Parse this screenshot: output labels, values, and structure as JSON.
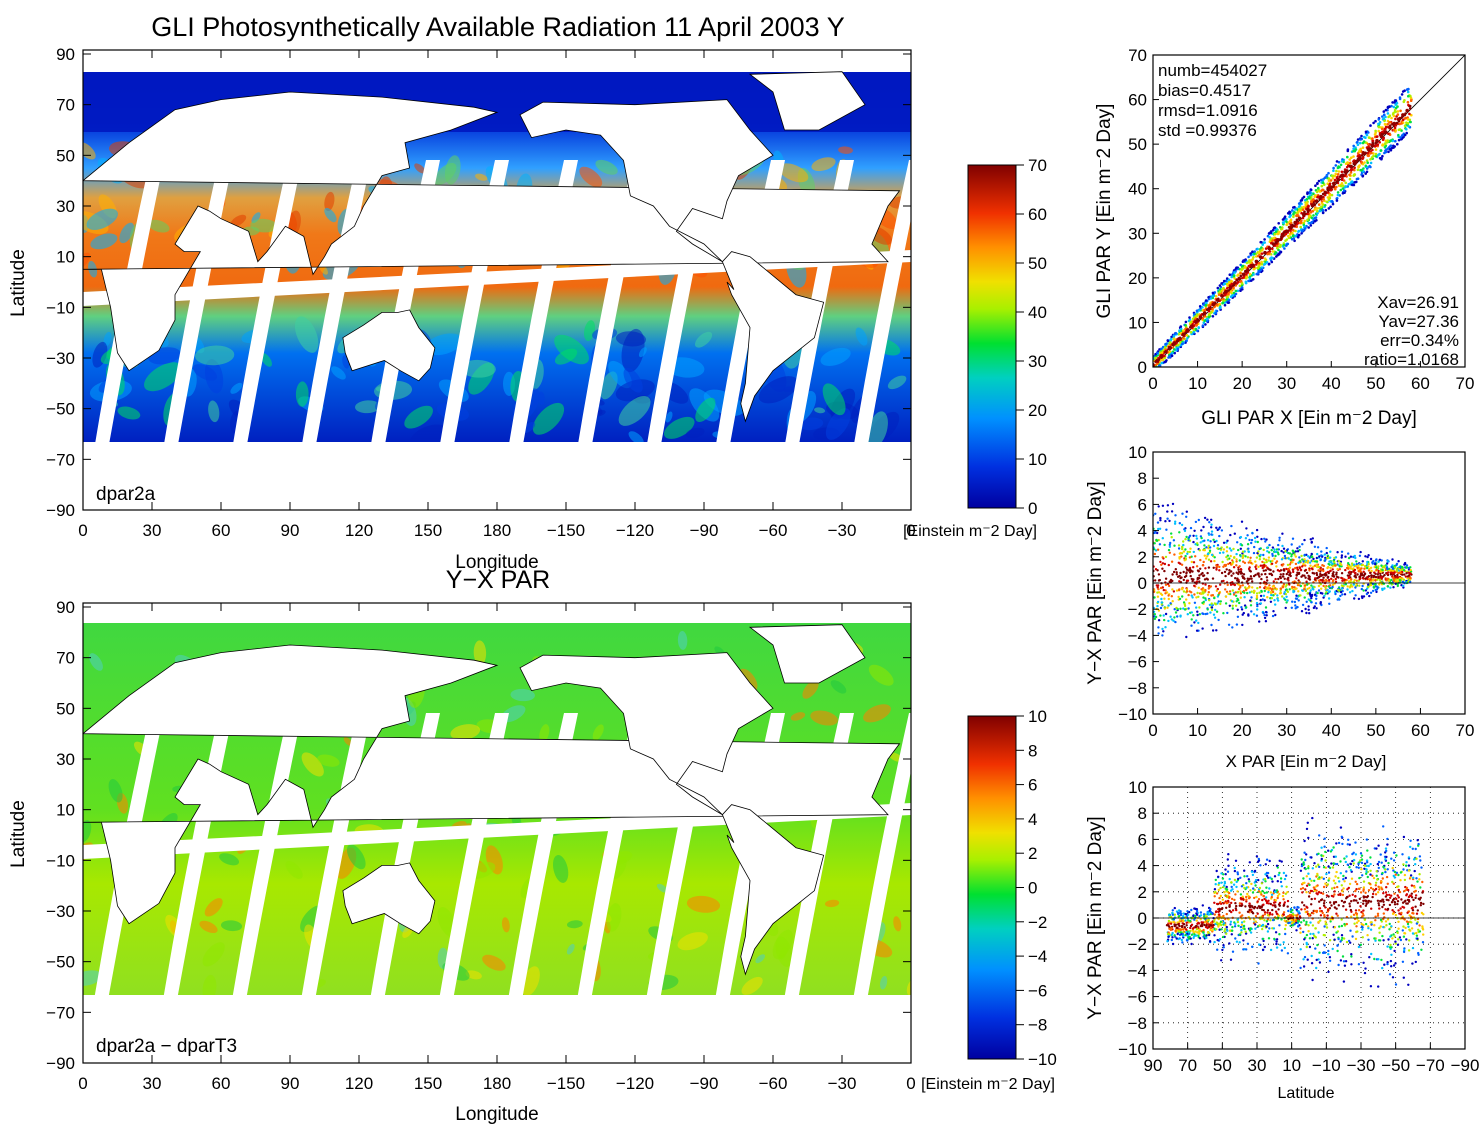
{
  "title": "GLI Photosynthetically Available Radiation 11 April 2003 Y",
  "map1": {
    "panel_label": "dpar2a",
    "xlabel": "Longitude",
    "ylabel": "Latitude",
    "x_ticks": [
      "0",
      "30",
      "60",
      "90",
      "120",
      "150",
      "180",
      "−150",
      "−120",
      "−90",
      "−60",
      "−30",
      "0"
    ],
    "y_ticks": [
      "90",
      "70",
      "50",
      "30",
      "10",
      "−10",
      "−30",
      "−50",
      "−70",
      "−90"
    ],
    "colorbar": {
      "ticks": [
        "70",
        "60",
        "50",
        "40",
        "30",
        "20",
        "10",
        "0"
      ],
      "unit": "[Einstein m⁻2 Day]",
      "colors": [
        "#0000a0",
        "#0050ff",
        "#00c8ff",
        "#00e040",
        "#c8ff00",
        "#ffd000",
        "#ff6000",
        "#d01000",
        "#800000"
      ]
    }
  },
  "map2": {
    "title": "Y−X PAR",
    "panel_label": "dpar2a − dparT3",
    "xlabel": "Longitude",
    "ylabel": "Latitude",
    "x_ticks": [
      "0",
      "30",
      "60",
      "90",
      "120",
      "150",
      "180",
      "−150",
      "−120",
      "−90",
      "−60",
      "−30",
      "0"
    ],
    "y_ticks": [
      "90",
      "70",
      "50",
      "30",
      "10",
      "−10",
      "−30",
      "−50",
      "−70",
      "−90"
    ],
    "colorbar": {
      "ticks": [
        "10",
        "8",
        "6",
        "4",
        "2",
        "0",
        "−2",
        "−4",
        "−6",
        "−8",
        "−10"
      ],
      "unit": "[Einstein m⁻2 Day]"
    }
  },
  "chart_data": [
    {
      "type": "scatter",
      "xlabel": "GLI PAR X [Ein m⁻2 Day]",
      "ylabel": "GLI PAR Y [Ein m⁻2 Day]",
      "xlim": [
        0,
        70
      ],
      "ylim": [
        0,
        70
      ],
      "x_ticks": [
        "0",
        "10",
        "20",
        "30",
        "40",
        "50",
        "60",
        "70"
      ],
      "y_ticks": [
        "0",
        "10",
        "20",
        "30",
        "40",
        "50",
        "60",
        "70"
      ],
      "stats_top": [
        "numb=454027",
        "bias=0.4517",
        "rmsd=1.0916",
        "std =0.99376"
      ],
      "stats_bottom": [
        "Xav=26.91",
        "Yav=27.36",
        "err=0.34%",
        "ratio=1.0168"
      ],
      "reference_line": "y = x",
      "density_ridge": {
        "x": [
          0,
          10,
          20,
          30,
          40,
          50,
          58
        ],
        "y": [
          0.5,
          10.5,
          20.5,
          30.5,
          40.5,
          50.5,
          58.5
        ]
      }
    },
    {
      "type": "scatter",
      "xlabel": "X PAR [Ein m⁻2 Day]",
      "ylabel": "Y−X PAR [Ein m⁻2 Day]",
      "xlim": [
        0,
        70
      ],
      "ylim": [
        -10,
        10
      ],
      "x_ticks": [
        "0",
        "10",
        "20",
        "30",
        "40",
        "50",
        "60",
        "70"
      ],
      "y_ticks": [
        "10",
        "8",
        "6",
        "4",
        "2",
        "0",
        "−2",
        "−4",
        "−6",
        "−8",
        "−10"
      ],
      "reference_line": "y = 0"
    },
    {
      "type": "scatter",
      "xlabel": "Latitude",
      "ylabel": "Y−X PAR [Ein m⁻2 Day]",
      "xlim": [
        90,
        -90
      ],
      "ylim": [
        -10,
        10
      ],
      "x_ticks": [
        "90",
        "70",
        "50",
        "30",
        "10",
        "−10",
        "−30",
        "−50",
        "−70",
        "−90"
      ],
      "y_ticks": [
        "10",
        "8",
        "6",
        "4",
        "2",
        "0",
        "−2",
        "−4",
        "−6",
        "−8",
        "−10"
      ],
      "grid": "dotted",
      "reference_line": "y = 0"
    }
  ]
}
